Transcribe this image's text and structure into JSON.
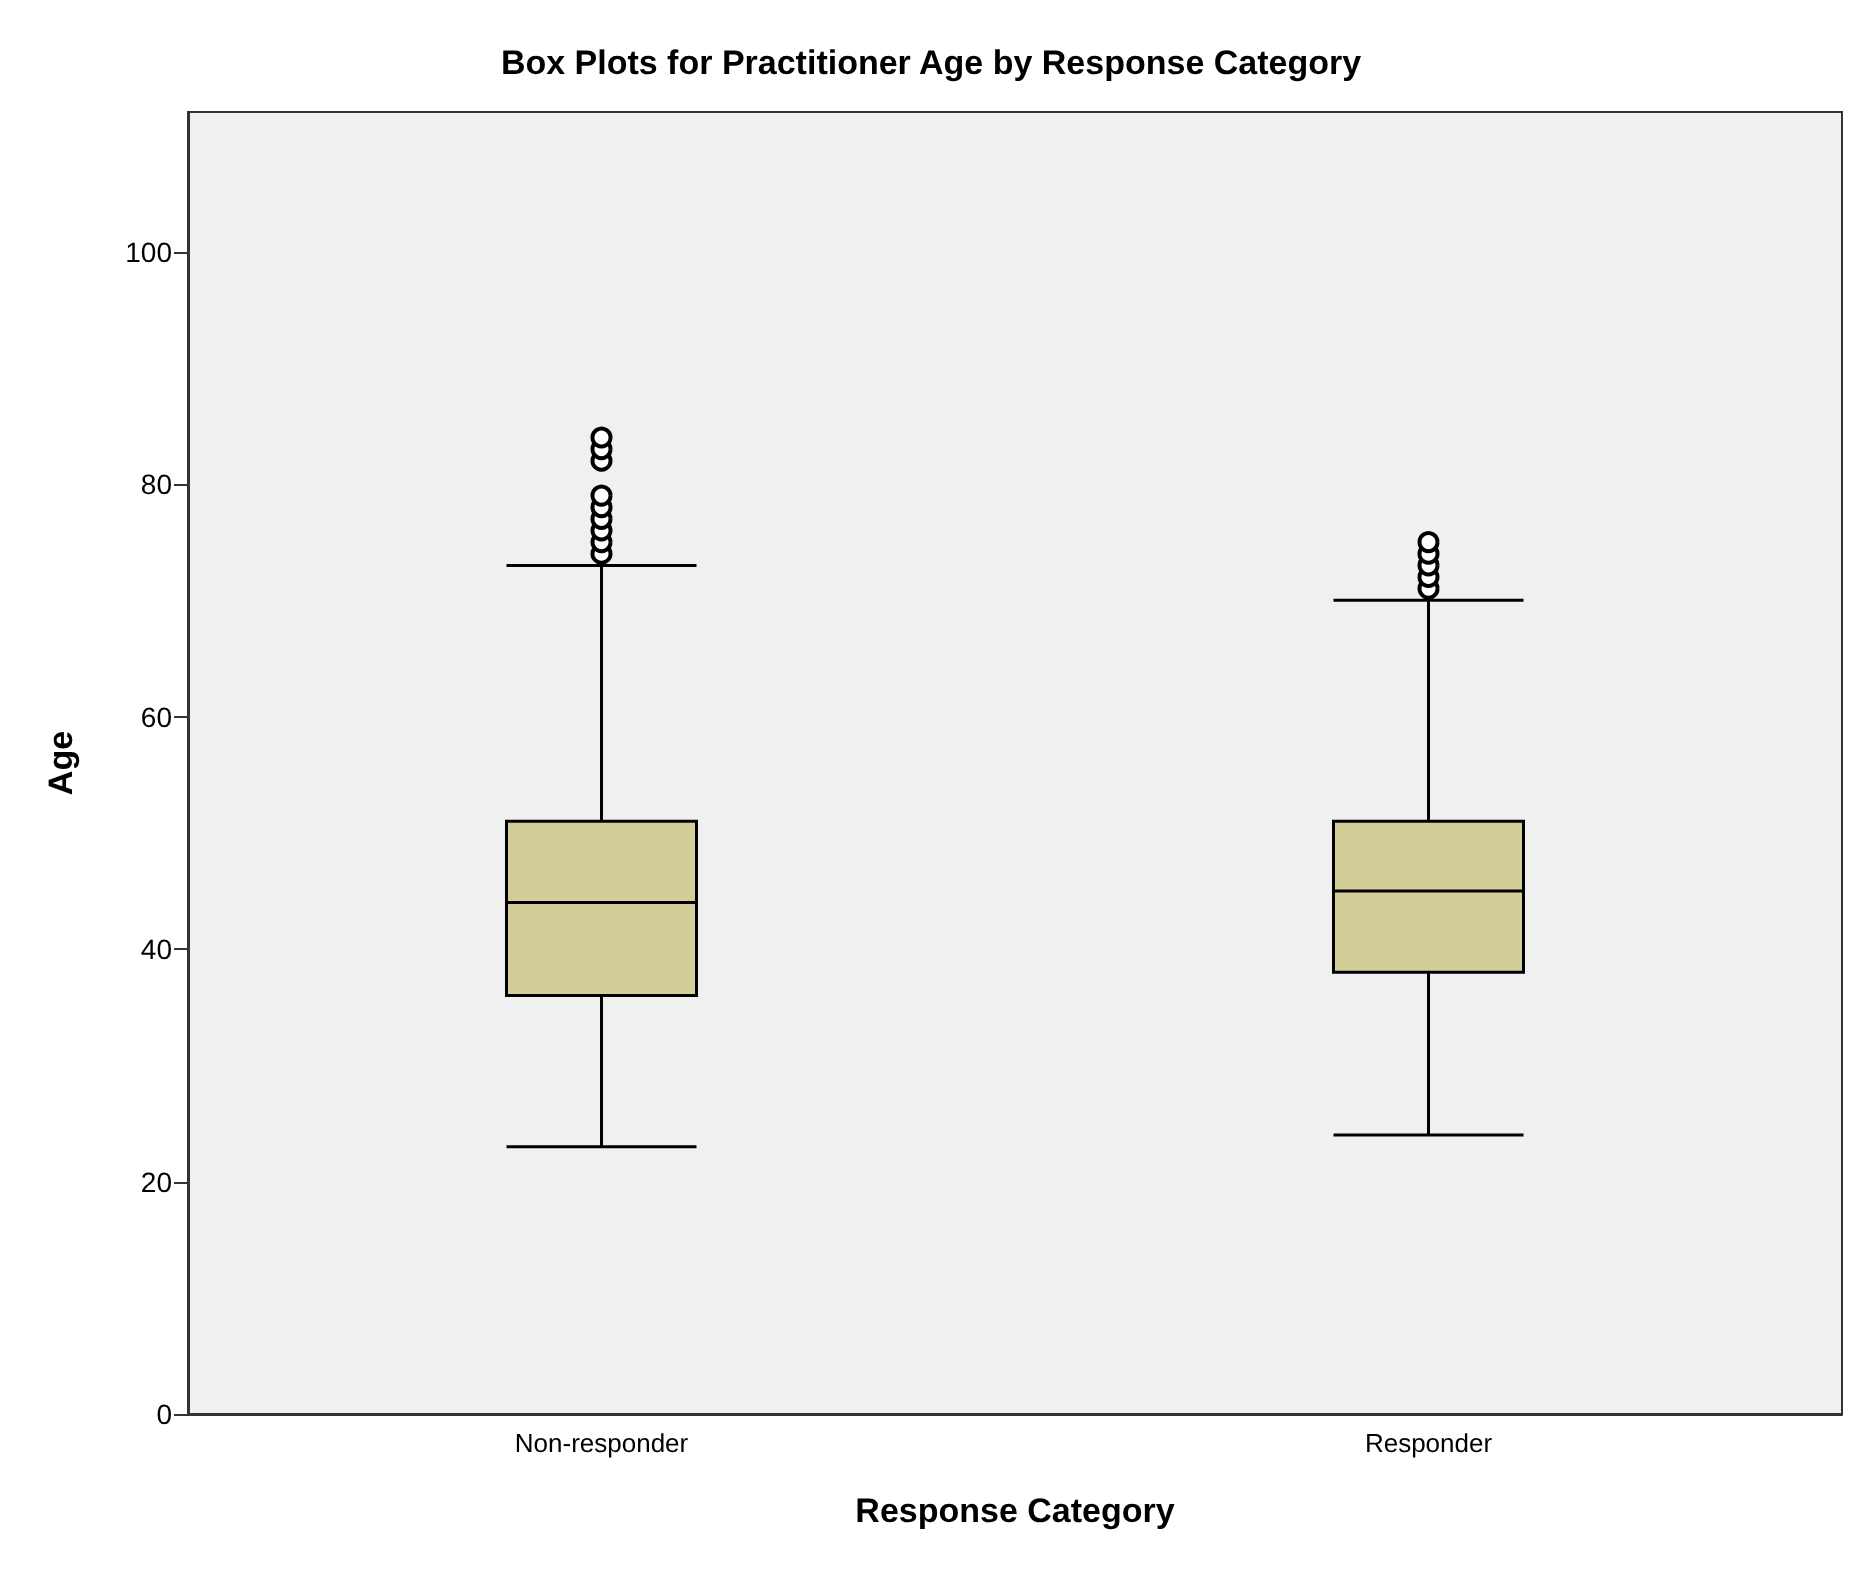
{
  "chart_data": {
    "type": "box",
    "title": "Box Plots for Practitioner Age by Response Category",
    "xlabel": "Response Category",
    "ylabel": "Age",
    "categories": [
      "Non-responder",
      "Responder"
    ],
    "boxes": [
      {
        "low": 23,
        "q1": 36,
        "median": 44,
        "q3": 51,
        "high": 73,
        "outliers": [
          74,
          75,
          76,
          77,
          78,
          79,
          82,
          83,
          84
        ]
      },
      {
        "low": 24,
        "q1": 38,
        "median": 45,
        "q3": 51,
        "high": 70,
        "outliers": [
          71,
          72,
          73,
          74,
          75
        ]
      }
    ],
    "color": "#d3ce98",
    "ylim": [
      0,
      112
    ],
    "yticks": [
      0,
      20,
      40,
      60,
      80,
      100
    ],
    "grid": false
  }
}
